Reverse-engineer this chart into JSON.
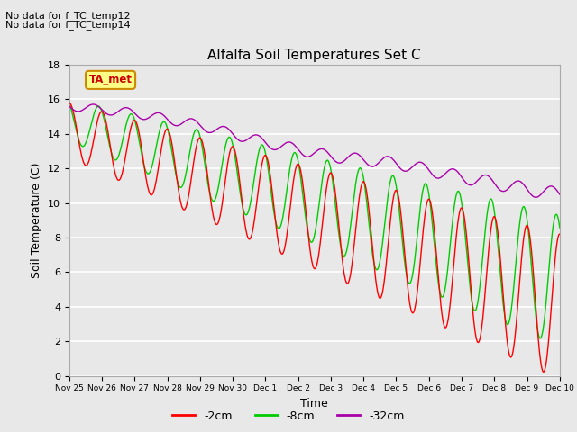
{
  "title": "Alfalfa Soil Temperatures Set C",
  "xlabel": "Time",
  "ylabel": "Soil Temperature (C)",
  "ylim": [
    0,
    18
  ],
  "yticks": [
    0,
    2,
    4,
    6,
    8,
    10,
    12,
    14,
    16,
    18
  ],
  "plot_bg_color": "#e8e8e8",
  "grid_color": "#ffffff",
  "colors": {
    "2cm": "#ff0000",
    "8cm": "#00cc00",
    "32cm": "#aa00aa"
  },
  "legend_labels": [
    "-2cm",
    "-8cm",
    "-32cm"
  ],
  "note_lines": [
    "No data for f_TC_temp12",
    "No data for f_TC_temp14"
  ],
  "ta_met_label": "TA_met",
  "xtick_labels": [
    "Nov 25",
    "Nov 26",
    "Nov 27",
    "Nov 28",
    "Nov 29",
    "Nov 30",
    "Dec 1",
    "Dec 2",
    "Dec 3",
    "Dec 4",
    "Dec 5",
    "Dec 6",
    "Dec 7",
    "Dec 8",
    "Dec 9",
    "Dec 10"
  ]
}
